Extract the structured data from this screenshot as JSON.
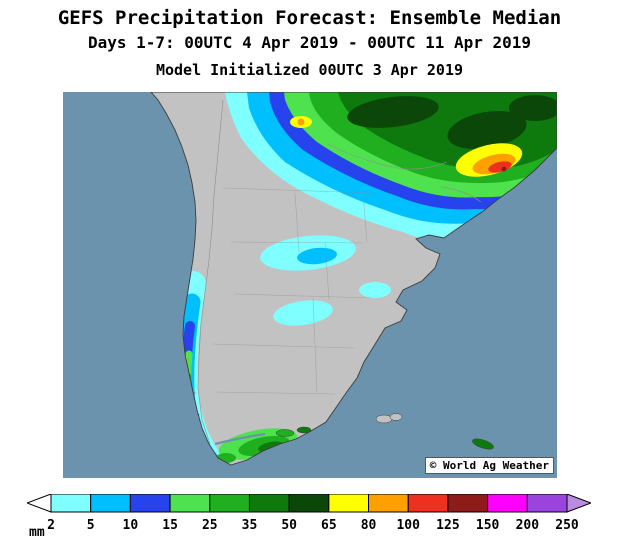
{
  "title": {
    "line1": "GEFS Precipitation Forecast: Ensemble Median",
    "line2": "Days 1-7: 00UTC 4 Apr 2019 - 00UTC 11 Apr 2019",
    "line3": "Model Initialized 00UTC 3 Apr 2019"
  },
  "map": {
    "credit": "© World Ag Weather"
  },
  "colorbar": {
    "unit": "mm",
    "ticks": [
      "2",
      "5",
      "10",
      "15",
      "25",
      "35",
      "50",
      "65",
      "80",
      "100",
      "125",
      "150",
      "200",
      "250"
    ],
    "colors": [
      "#7FFFFF",
      "#00BFFF",
      "#2743EE",
      "#4FE24F",
      "#1FAF1F",
      "#0E7A0E",
      "#0A4708",
      "#FFFF00",
      "#FFA000",
      "#EE3020",
      "#8E1A1A",
      "#FF00FF",
      "#9A44DD"
    ],
    "left_arrow_color": "#FFFFFF",
    "right_arrow_color": "#BB8BE0"
  },
  "palette": {
    "ocean": "#6C93AD",
    "land": "#C2C2C2",
    "coast": "#3C3C3C",
    "border": "#8E8E8E",
    "cyan": "#7FFFFF",
    "azure": "#00BFFF",
    "blue": "#2743EE",
    "green1": "#4FE24F",
    "green2": "#1FAF1F",
    "green3": "#0E7A0E",
    "green4": "#0A4708",
    "yellow": "#FFFF00",
    "orange": "#FFA000",
    "red": "#EE3020",
    "maroon": "#8E1A1A",
    "magenta": "#FF00FF",
    "purple": "#9A44DD",
    "violet": "#BB8BE0"
  }
}
